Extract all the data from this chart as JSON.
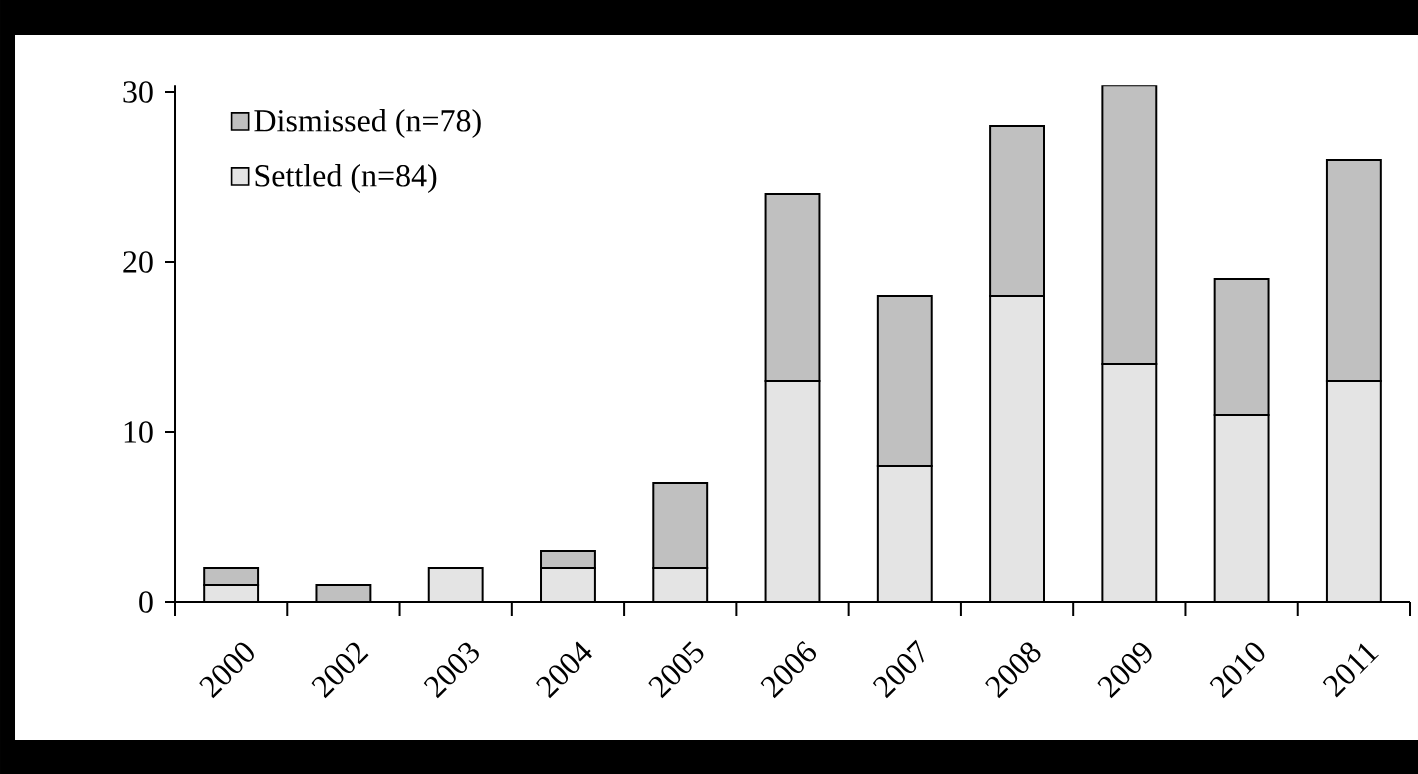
{
  "chart_data": {
    "type": "bar",
    "stacked": true,
    "categories": [
      "2000",
      "2002",
      "2003",
      "2004",
      "2005",
      "2006",
      "2007",
      "2008",
      "2009",
      "2010",
      "2011"
    ],
    "series": [
      {
        "name": "Settled (n=84)",
        "color": "#e4e4e4",
        "values": [
          1,
          0,
          2,
          2,
          2,
          13,
          8,
          18,
          14,
          11,
          13
        ]
      },
      {
        "name": "Dismissed (n=78)",
        "color": "#c0c0c0",
        "values": [
          1,
          1,
          0,
          1,
          5,
          11,
          10,
          10,
          16.4,
          8,
          13
        ]
      }
    ],
    "ylim": [
      0,
      30.4
    ],
    "yticks": [
      0,
      10,
      20,
      30
    ],
    "legend": "top left"
  }
}
